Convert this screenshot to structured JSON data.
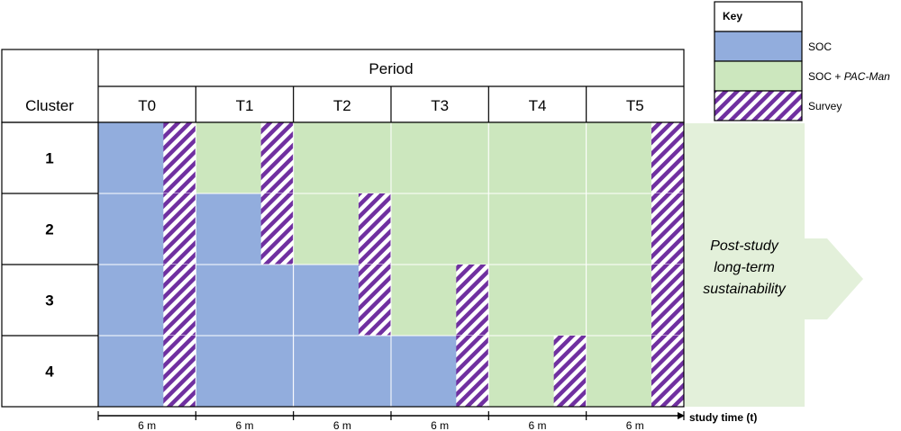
{
  "key": {
    "title": "Key",
    "items": [
      {
        "label": "SOC",
        "italic": "",
        "pattern": "soc"
      },
      {
        "label": "SOC + ",
        "italic": "PAC-Man",
        "pattern": "pac"
      },
      {
        "label": "Survey",
        "italic": "",
        "pattern": "survey"
      }
    ]
  },
  "table": {
    "period_header": "Period",
    "cluster_header": "Cluster",
    "periods": [
      "T0",
      "T1",
      "T2",
      "T3",
      "T4",
      "T5"
    ],
    "clusters": [
      "1",
      "2",
      "3",
      "4"
    ],
    "switch_period_index": [
      1,
      2,
      3,
      4
    ],
    "period_duration_label": "6 m",
    "time_axis_label": "study time (t)"
  },
  "post_study": {
    "lines": [
      "Post-study",
      "long-term",
      "sustainability"
    ]
  },
  "colors": {
    "soc": "#92ADDD",
    "pac": "#CCE7BE",
    "survey_stripe": "#7030A0",
    "arrow": "#E3F0DA",
    "border": "#000000",
    "cell_divider": "#FFFFFF"
  }
}
